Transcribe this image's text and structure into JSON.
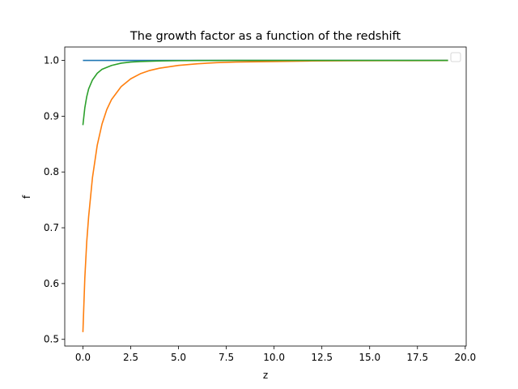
{
  "chart_data": {
    "type": "line",
    "title": "The growth factor as a function of the redshift",
    "xlabel": "z",
    "ylabel": "f",
    "xlim": [
      -0.95,
      20.05
    ],
    "ylim": [
      0.488,
      1.024
    ],
    "xticks": [
      0.0,
      2.5,
      5.0,
      7.5,
      10.0,
      12.5,
      15.0,
      17.5,
      20.0
    ],
    "xtick_labels": [
      "0.0",
      "2.5",
      "5.0",
      "7.5",
      "10.0",
      "12.5",
      "15.0",
      "17.5",
      "20.0"
    ],
    "yticks": [
      0.5,
      0.6,
      0.7,
      0.8,
      0.9,
      1.0
    ],
    "ytick_labels": [
      "0.5",
      "0.6",
      "0.7",
      "0.8",
      "0.9",
      "1.0"
    ],
    "grid": false,
    "legend": {
      "placement": "upper right",
      "entries": []
    },
    "series": [
      {
        "color": "#1f77b4",
        "x": [
          0,
          0.5,
          1,
          2,
          4,
          6,
          8,
          10,
          12,
          14,
          16,
          19.1
        ],
        "y": [
          1.0,
          1.0,
          1.0,
          1.0,
          1.0,
          1.0,
          1.0,
          1.0,
          1.0,
          1.0,
          1.0,
          1.0
        ]
      },
      {
        "color": "#ff7f0e",
        "x": [
          0,
          0.1,
          0.2,
          0.3,
          0.5,
          0.75,
          1.0,
          1.25,
          1.5,
          2.0,
          2.5,
          3.0,
          3.5,
          4.0,
          5.0,
          6.0,
          7.0,
          8.0,
          10.0,
          12.0,
          14.0,
          16.0,
          19.1
        ],
        "y": [
          0.513,
          0.61,
          0.675,
          0.72,
          0.79,
          0.848,
          0.886,
          0.912,
          0.93,
          0.953,
          0.967,
          0.976,
          0.982,
          0.986,
          0.991,
          0.994,
          0.996,
          0.997,
          0.998,
          0.999,
          0.9993,
          0.9995,
          0.9997
        ]
      },
      {
        "color": "#2ca02c",
        "x": [
          0,
          0.1,
          0.2,
          0.3,
          0.5,
          0.75,
          1.0,
          1.5,
          2.0,
          2.5,
          3.0,
          4.0,
          5.0,
          6.0,
          8.0,
          10.0,
          12.0,
          15.0,
          19.1
        ],
        "y": [
          0.884,
          0.915,
          0.935,
          0.949,
          0.965,
          0.977,
          0.984,
          0.991,
          0.995,
          0.997,
          0.998,
          0.999,
          0.9995,
          0.9997,
          0.9999,
          1.0,
          1.0,
          1.0,
          1.0
        ]
      }
    ]
  }
}
